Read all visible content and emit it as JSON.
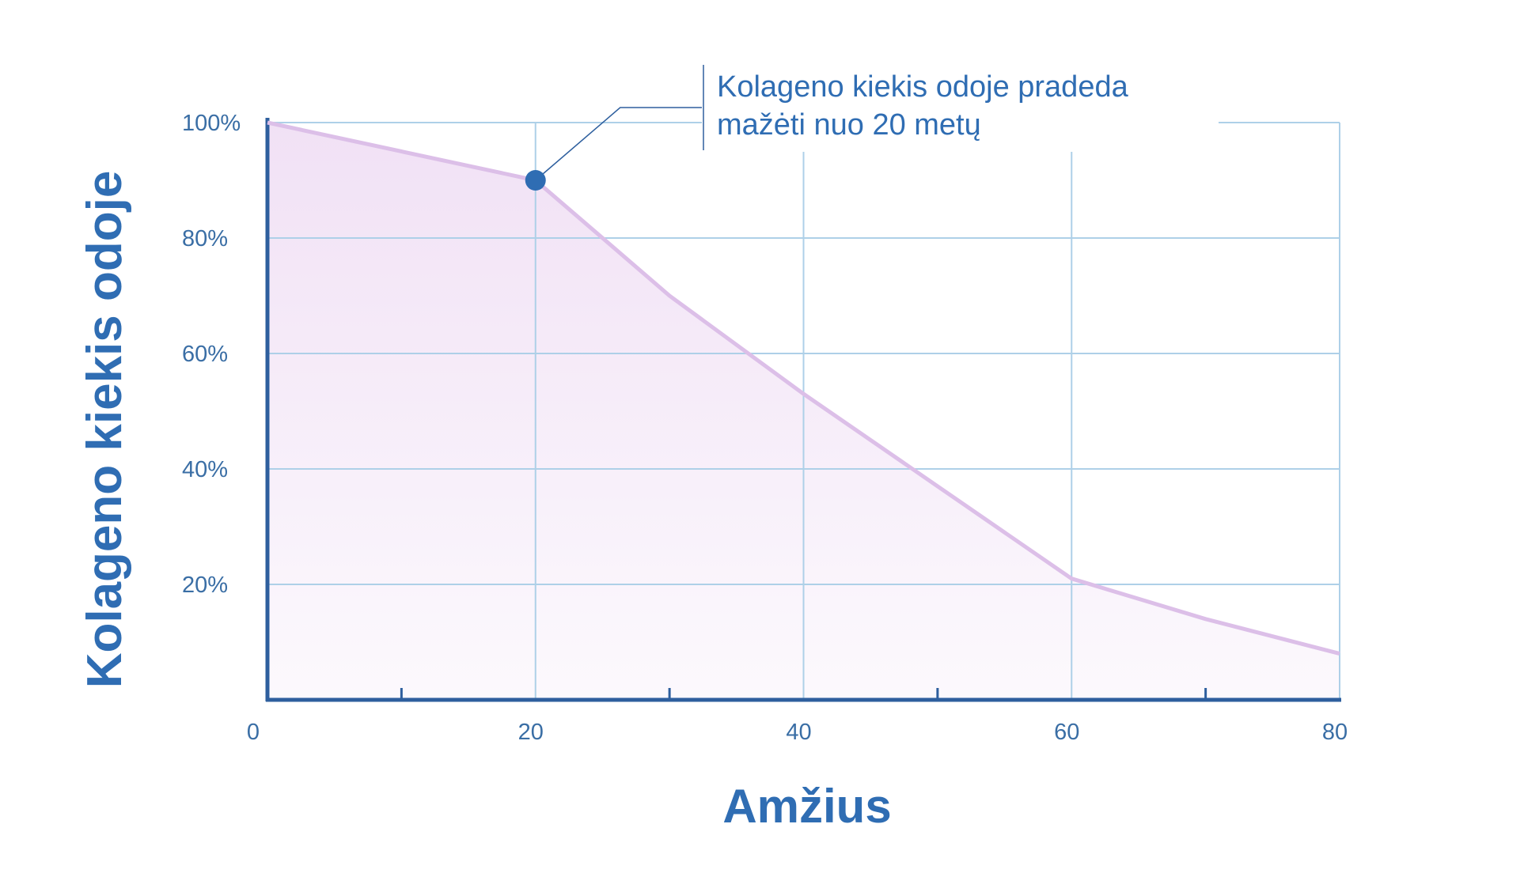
{
  "chart_data": {
    "type": "area",
    "title": "",
    "xlabel": "Amžius",
    "ylabel": "Kolageno kiekis odoje",
    "xlim": [
      0,
      80
    ],
    "ylim": [
      0,
      100
    ],
    "x_tick_labels": [
      {
        "value": 0,
        "label": "0"
      },
      {
        "value": 20,
        "label": "20"
      },
      {
        "value": 40,
        "label": "40"
      },
      {
        "value": 60,
        "label": "60"
      },
      {
        "value": 80,
        "label": "80"
      }
    ],
    "x_minor_ticks": [
      10,
      30,
      50,
      70
    ],
    "y_tick_labels": [
      {
        "value": 20,
        "label": "20%"
      },
      {
        "value": 40,
        "label": "40%"
      },
      {
        "value": 60,
        "label": "60%"
      },
      {
        "value": 80,
        "label": "80%"
      },
      {
        "value": 100,
        "label": "100%"
      }
    ],
    "grid": true,
    "series": [
      {
        "x": [
          0,
          20,
          30,
          40,
          50,
          60,
          70,
          80
        ],
        "y": [
          100,
          90,
          70,
          53,
          37,
          21,
          14,
          8
        ],
        "color": "#dcbfe8"
      }
    ],
    "highlight_point": {
      "x": 20,
      "y": 90,
      "color": "#2f6db3"
    },
    "annotation": {
      "lines": [
        "Kolageno kiekis odoje pradeda",
        "mažėti nuo 20 metų"
      ]
    }
  },
  "colors": {
    "grid": "#aed0e8",
    "axis": "#2e5f9e",
    "text": "#2f6db3",
    "fill_top": "#f1e1f5",
    "fill_bottom": "#fcf9fd"
  }
}
